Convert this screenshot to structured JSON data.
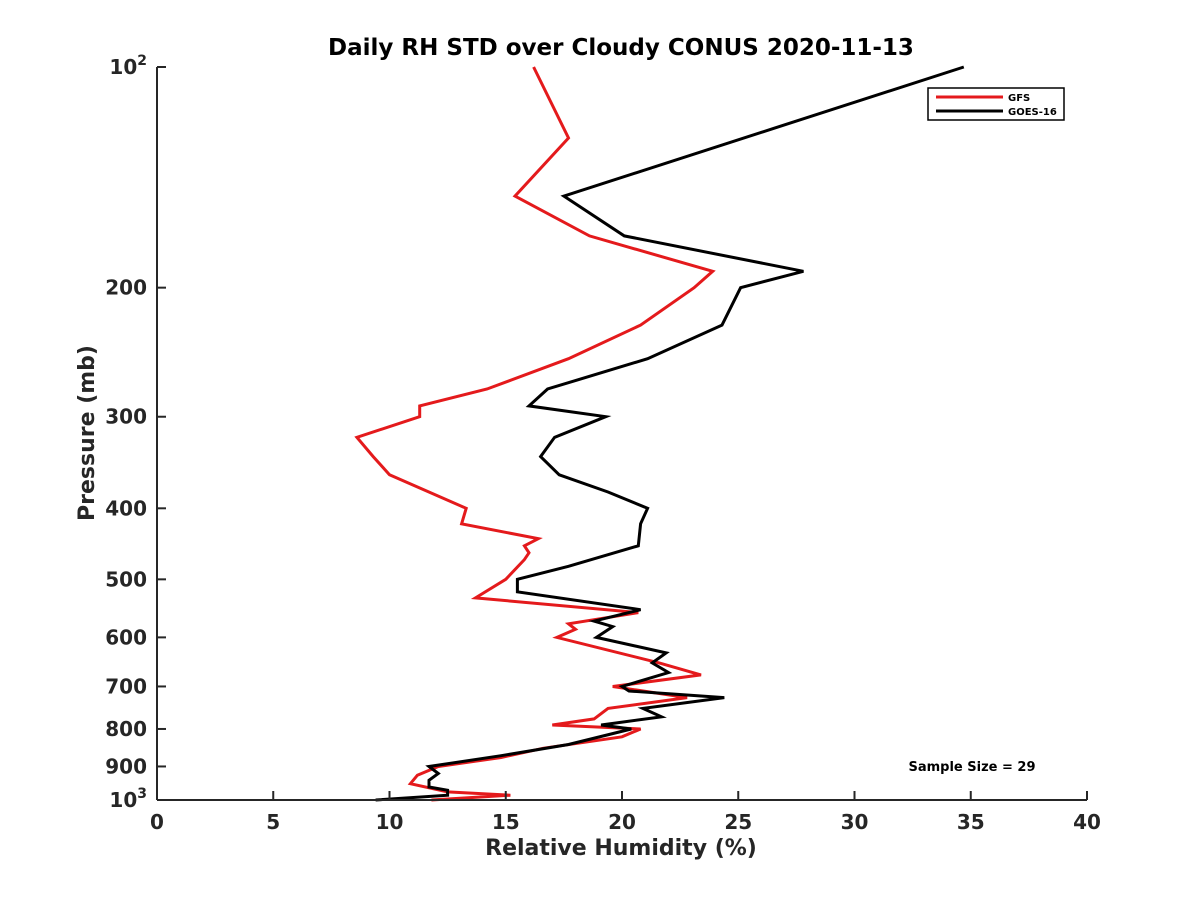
{
  "chart_data": {
    "type": "line",
    "title": "Daily RH STD over Cloudy CONUS 2020-11-13",
    "xlabel": "Relative Humidity (%)",
    "ylabel": "Pressure (mb)",
    "xlim": [
      0,
      40
    ],
    "ylim": [
      100,
      1000
    ],
    "yscale": "log",
    "yreversed": true,
    "xticks": [
      0,
      5,
      10,
      15,
      20,
      25,
      30,
      35,
      40
    ],
    "xtick_labels": [
      "0",
      "5",
      "10",
      "15",
      "20",
      "25",
      "30",
      "35",
      "40"
    ],
    "yticks": [
      {
        "value": 100,
        "base": "10",
        "exp": "2"
      },
      {
        "value": 200,
        "label": "200"
      },
      {
        "value": 300,
        "label": "300"
      },
      {
        "value": 400,
        "label": "400"
      },
      {
        "value": 500,
        "label": "500"
      },
      {
        "value": 600,
        "label": "600"
      },
      {
        "value": 700,
        "label": "700"
      },
      {
        "value": 800,
        "label": "800"
      },
      {
        "value": 900,
        "label": "900"
      },
      {
        "value": 1000,
        "base": "10",
        "exp": "3"
      }
    ],
    "legend_position": "top-right",
    "annotation": "Sample Size = 29",
    "series": [
      {
        "name": "GFS",
        "color": "#e41a1c",
        "points": [
          [
            16.2,
            100
          ],
          [
            17.7,
            125
          ],
          [
            15.4,
            150
          ],
          [
            18.6,
            170
          ],
          [
            23.9,
            190
          ],
          [
            23.1,
            200
          ],
          [
            20.8,
            225
          ],
          [
            17.7,
            250
          ],
          [
            14.2,
            275
          ],
          [
            11.3,
            290
          ],
          [
            11.3,
            300
          ],
          [
            8.6,
            320
          ],
          [
            9.3,
            340
          ],
          [
            10.0,
            360
          ],
          [
            13.3,
            400
          ],
          [
            13.1,
            420
          ],
          [
            16.4,
            440
          ],
          [
            15.8,
            450
          ],
          [
            16.0,
            460
          ],
          [
            15.8,
            470
          ],
          [
            15.0,
            500
          ],
          [
            13.7,
            530
          ],
          [
            20.7,
            555
          ],
          [
            17.7,
            575
          ],
          [
            18.0,
            585
          ],
          [
            17.2,
            600
          ],
          [
            21.6,
            650
          ],
          [
            23.4,
            675
          ],
          [
            19.6,
            700
          ],
          [
            22.8,
            725
          ],
          [
            19.4,
            750
          ],
          [
            18.8,
            775
          ],
          [
            17.0,
            790
          ],
          [
            20.8,
            800
          ],
          [
            20.0,
            820
          ],
          [
            16.6,
            850
          ],
          [
            14.8,
            875
          ],
          [
            12.1,
            900
          ],
          [
            11.2,
            925
          ],
          [
            10.9,
            950
          ],
          [
            12.5,
            975
          ],
          [
            15.2,
            985
          ],
          [
            11.8,
            1000
          ]
        ]
      },
      {
        "name": "GOES-16",
        "color": "#000000",
        "points": [
          [
            34.7,
            100
          ],
          [
            17.5,
            150
          ],
          [
            20.1,
            170
          ],
          [
            27.8,
            190
          ],
          [
            25.1,
            200
          ],
          [
            24.3,
            225
          ],
          [
            21.1,
            250
          ],
          [
            16.8,
            275
          ],
          [
            16.0,
            290
          ],
          [
            19.3,
            300
          ],
          [
            17.1,
            320
          ],
          [
            16.5,
            340
          ],
          [
            17.3,
            360
          ],
          [
            19.4,
            380
          ],
          [
            21.1,
            400
          ],
          [
            20.8,
            420
          ],
          [
            20.7,
            450
          ],
          [
            17.7,
            480
          ],
          [
            15.5,
            500
          ],
          [
            15.5,
            520
          ],
          [
            20.8,
            550
          ],
          [
            18.8,
            570
          ],
          [
            19.6,
            580
          ],
          [
            18.9,
            600
          ],
          [
            21.9,
            630
          ],
          [
            21.3,
            650
          ],
          [
            22.0,
            670
          ],
          [
            20.0,
            700
          ],
          [
            20.3,
            710
          ],
          [
            24.4,
            725
          ],
          [
            20.9,
            750
          ],
          [
            21.7,
            770
          ],
          [
            19.1,
            790
          ],
          [
            20.4,
            800
          ],
          [
            17.7,
            840
          ],
          [
            14.8,
            870
          ],
          [
            11.7,
            900
          ],
          [
            12.1,
            920
          ],
          [
            11.7,
            940
          ],
          [
            11.7,
            960
          ],
          [
            12.5,
            970
          ],
          [
            12.5,
            985
          ],
          [
            9.4,
            1000
          ]
        ]
      }
    ]
  }
}
